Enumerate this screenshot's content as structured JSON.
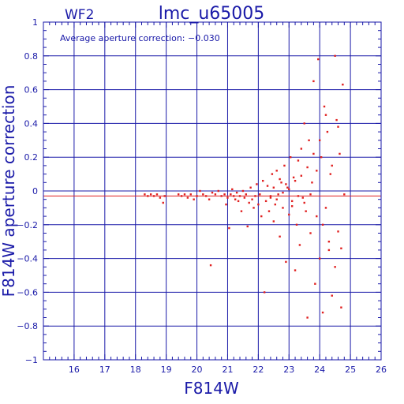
{
  "header": {
    "chip": "WF2",
    "title": "lmc_u65005"
  },
  "annotation": "Average aperture correction: −0.030",
  "colors": {
    "axes": "#1a1aa8",
    "points": "#e02020",
    "average_line": "#e02020",
    "background": "#ffffff"
  },
  "chart_data": {
    "type": "scatter",
    "title": "lmc_u65005",
    "subtitle": "WF2",
    "xlabel": "F814W",
    "ylabel": "F814W aperture correction",
    "xlim": [
      15,
      26
    ],
    "ylim": [
      -1,
      1
    ],
    "x_ticks": [
      16,
      17,
      18,
      19,
      20,
      21,
      22,
      23,
      24,
      25,
      26
    ],
    "y_ticks": [
      -1,
      -0.8,
      -0.6,
      -0.4,
      -0.2,
      0,
      0.2,
      0.4,
      0.6,
      0.8,
      1
    ],
    "x_tick_labels": [
      "16",
      "17",
      "18",
      "19",
      "20",
      "21",
      "22",
      "23",
      "24",
      "25",
      "26"
    ],
    "y_tick_labels": [
      "−1",
      "−0.8",
      "−0.6",
      "−0.4",
      "−0.2",
      "0",
      "0.2",
      "0.4",
      "0.6",
      "0.8",
      "1"
    ],
    "grid": true,
    "reference_lines": [
      {
        "y": 0
      },
      {
        "y": -0.03
      }
    ],
    "points": [
      [
        18.3,
        -0.02
      ],
      [
        18.4,
        -0.03
      ],
      [
        18.5,
        -0.02
      ],
      [
        18.6,
        -0.03
      ],
      [
        18.7,
        -0.02
      ],
      [
        18.8,
        -0.04
      ],
      [
        18.9,
        -0.07
      ],
      [
        18.95,
        -0.03
      ],
      [
        19.4,
        -0.02
      ],
      [
        19.5,
        -0.03
      ],
      [
        19.6,
        -0.02
      ],
      [
        19.7,
        -0.04
      ],
      [
        19.8,
        -0.02
      ],
      [
        19.9,
        -0.05
      ],
      [
        20.0,
        -0.03
      ],
      [
        20.1,
        0.0
      ],
      [
        20.2,
        -0.02
      ],
      [
        20.3,
        -0.03
      ],
      [
        20.4,
        -0.05
      ],
      [
        20.45,
        -0.44
      ],
      [
        20.5,
        -0.01
      ],
      [
        20.6,
        -0.02
      ],
      [
        20.7,
        0.0
      ],
      [
        20.8,
        -0.03
      ],
      [
        20.9,
        -0.02
      ],
      [
        20.95,
        -0.08
      ],
      [
        21.0,
        -0.04
      ],
      [
        21.05,
        -0.22
      ],
      [
        21.1,
        -0.02
      ],
      [
        21.15,
        0.01
      ],
      [
        21.2,
        -0.03
      ],
      [
        21.25,
        -0.05
      ],
      [
        21.3,
        -0.01
      ],
      [
        21.35,
        -0.06
      ],
      [
        21.4,
        -0.03
      ],
      [
        21.45,
        -0.12
      ],
      [
        21.5,
        0.0
      ],
      [
        21.55,
        -0.04
      ],
      [
        21.6,
        -0.02
      ],
      [
        21.65,
        -0.21
      ],
      [
        21.7,
        -0.07
      ],
      [
        21.75,
        0.02
      ],
      [
        21.8,
        -0.05
      ],
      [
        21.85,
        -0.1
      ],
      [
        21.9,
        -0.03
      ],
      [
        21.95,
        0.04
      ],
      [
        22.0,
        -0.08
      ],
      [
        22.05,
        -0.02
      ],
      [
        22.1,
        -0.15
      ],
      [
        22.15,
        0.06
      ],
      [
        22.2,
        -0.6
      ],
      [
        22.25,
        -0.06
      ],
      [
        22.3,
        0.03
      ],
      [
        22.35,
        -0.12
      ],
      [
        22.4,
        -0.04
      ],
      [
        22.45,
        0.1
      ],
      [
        22.5,
        -0.18
      ],
      [
        22.55,
        -0.08
      ],
      [
        22.6,
        0.12
      ],
      [
        22.65,
        -0.02
      ],
      [
        22.7,
        -0.27
      ],
      [
        22.75,
        0.05
      ],
      [
        22.8,
        -0.1
      ],
      [
        22.85,
        0.15
      ],
      [
        22.9,
        -0.42
      ],
      [
        22.95,
        0.02
      ],
      [
        23.0,
        -0.14
      ],
      [
        23.05,
        0.2
      ],
      [
        23.1,
        -0.06
      ],
      [
        23.15,
        0.08
      ],
      [
        23.2,
        -0.47
      ],
      [
        23.25,
        -0.2
      ],
      [
        23.3,
        0.18
      ],
      [
        23.35,
        -0.32
      ],
      [
        23.4,
        0.25
      ],
      [
        23.45,
        -0.04
      ],
      [
        23.5,
        0.4
      ],
      [
        23.55,
        -0.12
      ],
      [
        23.6,
        -0.75
      ],
      [
        23.65,
        0.3
      ],
      [
        23.7,
        -0.25
      ],
      [
        23.75,
        0.05
      ],
      [
        23.8,
        0.65
      ],
      [
        23.85,
        -0.55
      ],
      [
        23.9,
        0.12
      ],
      [
        23.95,
        0.78
      ],
      [
        24.0,
        -0.4
      ],
      [
        24.05,
        0.2
      ],
      [
        24.1,
        -0.72
      ],
      [
        24.15,
        0.5
      ],
      [
        24.2,
        -0.1
      ],
      [
        24.25,
        0.35
      ],
      [
        24.3,
        -0.3
      ],
      [
        24.35,
        0.1
      ],
      [
        24.4,
        -0.62
      ],
      [
        24.5,
        0.8
      ],
      [
        24.55,
        0.42
      ],
      [
        24.6,
        -0.24
      ],
      [
        24.65,
        0.22
      ],
      [
        24.7,
        -0.69
      ],
      [
        24.75,
        0.63
      ],
      [
        24.8,
        -0.02
      ],
      [
        22.4,
        -0.03
      ],
      [
        22.5,
        0.02
      ],
      [
        22.6,
        -0.05
      ],
      [
        22.7,
        0.07
      ],
      [
        22.8,
        -0.01
      ],
      [
        22.9,
        0.04
      ],
      [
        23.0,
        0.01
      ],
      [
        23.1,
        -0.09
      ],
      [
        23.2,
        0.06
      ],
      [
        23.3,
        -0.03
      ],
      [
        23.4,
        0.09
      ],
      [
        23.5,
        -0.07
      ],
      [
        23.6,
        0.14
      ],
      [
        23.7,
        -0.02
      ],
      [
        23.8,
        0.22
      ],
      [
        23.9,
        -0.15
      ],
      [
        24.0,
        0.3
      ],
      [
        24.1,
        -0.2
      ],
      [
        24.2,
        0.45
      ],
      [
        24.3,
        -0.35
      ],
      [
        24.4,
        0.15
      ],
      [
        24.5,
        -0.45
      ],
      [
        24.6,
        0.38
      ],
      [
        24.7,
        -0.34
      ]
    ]
  }
}
